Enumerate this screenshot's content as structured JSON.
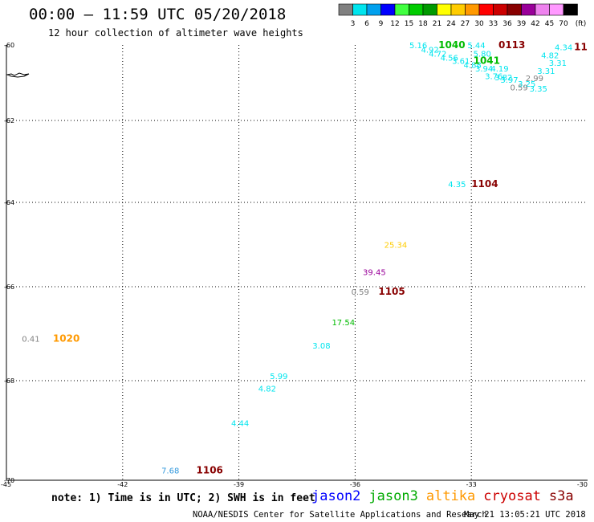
{
  "header": {
    "title": "00:00 – 11:59 UTC 05/20/2018",
    "subtitle": "12 hour collection of altimeter wave heights"
  },
  "legend": {
    "unit": "(ft)",
    "bins": [
      {
        "label": "3",
        "color": "#808080"
      },
      {
        "label": "6",
        "color": "#00e5ee"
      },
      {
        "label": "9",
        "color": "#00a0ee"
      },
      {
        "label": "12",
        "color": "#0000ff"
      },
      {
        "label": "15",
        "color": "#40ff40"
      },
      {
        "label": "18",
        "color": "#00cc00"
      },
      {
        "label": "21",
        "color": "#009900"
      },
      {
        "label": "24",
        "color": "#ffff00"
      },
      {
        "label": "27",
        "color": "#ffcc00"
      },
      {
        "label": "30",
        "color": "#ff9900"
      },
      {
        "label": "33",
        "color": "#ff0000"
      },
      {
        "label": "36",
        "color": "#cc0000"
      },
      {
        "label": "39",
        "color": "#880000"
      },
      {
        "label": "42",
        "color": "#990099"
      },
      {
        "label": "45",
        "color": "#ee82ee"
      },
      {
        "label": "70",
        "color": "#ff99ff"
      },
      {
        "label": "",
        "color": "#000000"
      }
    ]
  },
  "axes": {
    "lat_labels": [
      "-60",
      "-62",
      "-64",
      "-66",
      "-68",
      "-70"
    ],
    "lon_labels": [
      "-45",
      "-42",
      "-39",
      "-36",
      "-33",
      "-30"
    ]
  },
  "colors": {
    "jason2": "#0000ff",
    "jason3": "#00aa00",
    "altika": "#ff9900",
    "cryosat": "#cc0000",
    "s3a": "#880000",
    "cyan": "#00e5ee",
    "gray": "#808080",
    "green": "#00bb00",
    "dark_red": "#880000",
    "orange": "#ff9900",
    "yellow": "#ffcc00",
    "purple": "#990099",
    "blue": "#3399dd"
  },
  "observations": [
    {
      "text": "5.16",
      "lon": -34.6,
      "lat": -60.0,
      "color": "cyan"
    },
    {
      "text": "1040",
      "lon": -33.85,
      "lat": -60.0,
      "color": "green",
      "bold": true
    },
    {
      "text": "4.92",
      "lon": -34.3,
      "lat": -60.12,
      "color": "cyan"
    },
    {
      "text": "4.72",
      "lon": -34.1,
      "lat": -60.22,
      "color": "cyan"
    },
    {
      "text": "4.56",
      "lon": -33.8,
      "lat": -60.33,
      "color": "cyan"
    },
    {
      "text": "3.61",
      "lon": -33.5,
      "lat": -60.42,
      "color": "cyan"
    },
    {
      "text": "4.88",
      "lon": -33.2,
      "lat": -60.52,
      "color": "cyan"
    },
    {
      "text": "1041",
      "lon": -32.95,
      "lat": -60.42,
      "color": "green",
      "bold": true
    },
    {
      "text": "5.44",
      "lon": -33.1,
      "lat": -60.0,
      "color": "cyan"
    },
    {
      "text": "5.80",
      "lon": -32.95,
      "lat": -60.22,
      "color": "cyan"
    },
    {
      "text": "0113",
      "lon": -32.3,
      "lat": -60.0,
      "color": "dark_red",
      "bold": true
    },
    {
      "text": "3.94",
      "lon": -32.9,
      "lat": -60.62,
      "color": "cyan"
    },
    {
      "text": "4.19",
      "lon": -32.5,
      "lat": -60.62,
      "color": "cyan"
    },
    {
      "text": "3.76",
      "lon": -32.65,
      "lat": -60.82,
      "color": "cyan"
    },
    {
      "text": "3.82",
      "lon": -32.4,
      "lat": -60.85,
      "color": "cyan"
    },
    {
      "text": "3.97",
      "lon": -32.25,
      "lat": -60.92,
      "color": "cyan"
    },
    {
      "text": "3.25",
      "lon": -31.8,
      "lat": -61.02,
      "color": "cyan"
    },
    {
      "text": "0.59",
      "lon": -32.0,
      "lat": -61.12,
      "color": "gray"
    },
    {
      "text": "2.99",
      "lon": -31.6,
      "lat": -60.87,
      "color": "gray"
    },
    {
      "text": "3.35",
      "lon": -31.5,
      "lat": -61.15,
      "color": "cyan"
    },
    {
      "text": "3.31",
      "lon": -31.3,
      "lat": -60.68,
      "color": "cyan"
    },
    {
      "text": "3.31",
      "lon": -31.0,
      "lat": -60.47,
      "color": "cyan"
    },
    {
      "text": "4.82",
      "lon": -31.2,
      "lat": -60.27,
      "color": "cyan"
    },
    {
      "text": "4.34",
      "lon": -30.85,
      "lat": -60.05,
      "color": "cyan"
    },
    {
      "text": "11",
      "lon": -30.35,
      "lat": -60.05,
      "color": "dark_red",
      "bold": true
    },
    {
      "text": "4.35",
      "lon": -33.6,
      "lat": -63.55,
      "color": "cyan"
    },
    {
      "text": "1104",
      "lon": -33.0,
      "lat": -63.55,
      "color": "dark_red",
      "bold": true
    },
    {
      "text": "25.34",
      "lon": -35.25,
      "lat": -65.0,
      "color": "yellow"
    },
    {
      "text": "39.45",
      "lon": -35.8,
      "lat": -65.65,
      "color": "purple"
    },
    {
      "text": "0.59",
      "lon": -36.1,
      "lat": -66.1,
      "color": "gray"
    },
    {
      "text": "1105",
      "lon": -35.4,
      "lat": -66.1,
      "color": "dark_red",
      "bold": true
    },
    {
      "text": "17.54",
      "lon": -36.6,
      "lat": -66.75,
      "color": "green"
    },
    {
      "text": "3.08",
      "lon": -37.1,
      "lat": -67.25,
      "color": "cyan"
    },
    {
      "text": "0.41",
      "lon": -44.6,
      "lat": -67.1,
      "color": "gray"
    },
    {
      "text": "1020",
      "lon": -43.8,
      "lat": -67.1,
      "color": "orange",
      "bold": true
    },
    {
      "text": "5.99",
      "lon": -38.2,
      "lat": -67.9,
      "color": "cyan"
    },
    {
      "text": "4.82",
      "lon": -38.5,
      "lat": -68.15,
      "color": "cyan"
    },
    {
      "text": "4.44",
      "lon": -39.2,
      "lat": -68.85,
      "color": "cyan"
    },
    {
      "text": "7.68",
      "lon": -41.0,
      "lat": -69.8,
      "color": "blue"
    },
    {
      "text": "1106",
      "lon": -40.1,
      "lat": -69.8,
      "color": "dark_red",
      "bold": true
    }
  ],
  "footer": {
    "note": "note: 1) Time is in UTC; 2) SWH is in feet",
    "missions": [
      {
        "label": "jason2",
        "color": "jason2"
      },
      {
        "label": "jason3",
        "color": "jason3"
      },
      {
        "label": "altika",
        "color": "altika"
      },
      {
        "label": "cryosat",
        "color": "cryosat"
      },
      {
        "label": "s3a",
        "color": "s3a"
      }
    ],
    "credit": "NOAA/NESDIS Center for Satellite Applications and Research",
    "timestamp": "May 21 13:05:21 UTC 2018"
  }
}
